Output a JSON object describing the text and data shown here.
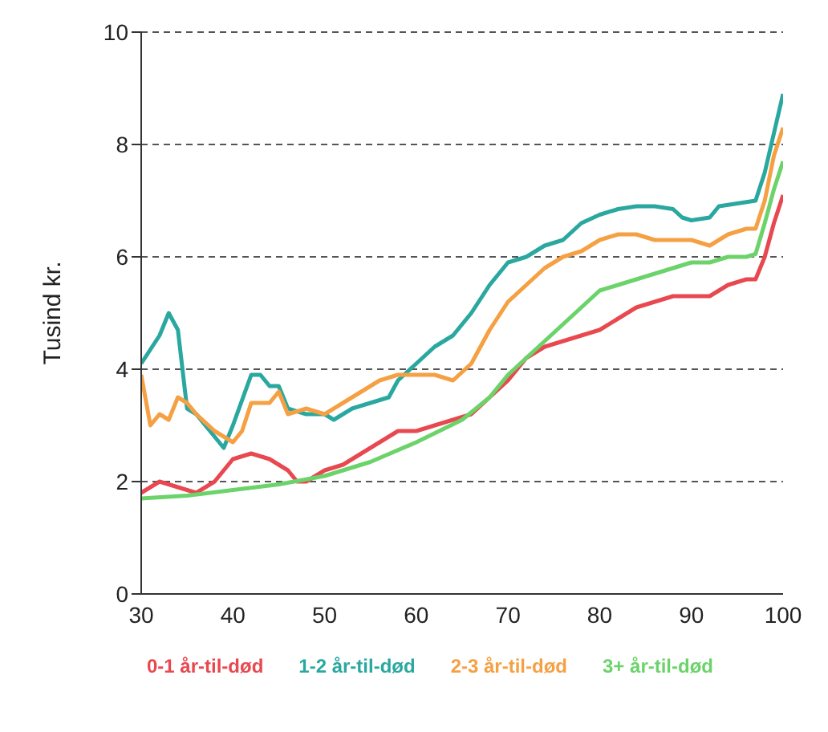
{
  "chart_data": {
    "type": "line",
    "ylabel": "Tusind kr.",
    "xlim": [
      30,
      100
    ],
    "xticks": [
      30,
      40,
      50,
      60,
      70,
      80,
      90,
      100
    ],
    "ylim": [
      0,
      10
    ],
    "yticks": [
      0,
      2,
      4,
      6,
      8,
      10
    ],
    "grid": "y",
    "legend": "bottom",
    "marker": "none",
    "line_style": "solid",
    "series": [
      {
        "name": "0-1 år-til-død",
        "color": "#e8484f",
        "x": [
          30,
          31,
          32,
          34,
          36,
          38,
          40,
          42,
          44,
          46,
          47,
          48,
          50,
          52,
          54,
          56,
          58,
          60,
          62,
          64,
          66,
          68,
          70,
          72,
          74,
          76,
          78,
          80,
          82,
          84,
          86,
          88,
          90,
          92,
          94,
          96,
          97,
          98,
          99,
          100
        ],
        "values": [
          1.8,
          1.9,
          2.0,
          1.9,
          1.8,
          2.0,
          2.4,
          2.5,
          2.4,
          2.2,
          2.0,
          2.0,
          2.2,
          2.3,
          2.5,
          2.7,
          2.9,
          2.9,
          3.0,
          3.1,
          3.2,
          3.5,
          3.8,
          4.2,
          4.4,
          4.5,
          4.6,
          4.7,
          4.9,
          5.1,
          5.2,
          5.3,
          5.3,
          5.3,
          5.5,
          5.6,
          5.6,
          6.0,
          6.6,
          7.1
        ]
      },
      {
        "name": "1-2 år-til-død",
        "color": "#2aa8a0",
        "x": [
          30,
          32,
          33,
          34,
          35,
          36,
          38,
          39,
          40,
          42,
          43,
          44,
          45,
          46,
          48,
          50,
          51,
          53,
          55,
          57,
          58,
          60,
          62,
          64,
          66,
          68,
          70,
          72,
          74,
          76,
          78,
          80,
          82,
          84,
          86,
          88,
          89,
          90,
          92,
          93,
          95,
          97,
          98,
          99,
          100
        ],
        "values": [
          4.1,
          4.6,
          5.0,
          4.7,
          3.3,
          3.2,
          2.8,
          2.6,
          3.0,
          3.9,
          3.9,
          3.7,
          3.7,
          3.3,
          3.2,
          3.2,
          3.1,
          3.3,
          3.4,
          3.5,
          3.8,
          4.1,
          4.4,
          4.6,
          5.0,
          5.5,
          5.9,
          6.0,
          6.2,
          6.3,
          6.6,
          6.75,
          6.85,
          6.9,
          6.9,
          6.85,
          6.7,
          6.65,
          6.7,
          6.9,
          6.95,
          7.0,
          7.5,
          8.2,
          8.9
        ]
      },
      {
        "name": "2-3 år-til-død",
        "color": "#f5a043",
        "x": [
          30,
          31,
          32,
          33,
          34,
          35,
          36,
          38,
          40,
          41,
          42,
          44,
          45,
          46,
          48,
          50,
          52,
          54,
          56,
          58,
          60,
          62,
          64,
          66,
          68,
          70,
          72,
          74,
          76,
          78,
          80,
          82,
          84,
          86,
          88,
          90,
          92,
          94,
          96,
          97,
          98,
          99,
          100
        ],
        "values": [
          3.9,
          3.0,
          3.2,
          3.1,
          3.5,
          3.4,
          3.2,
          2.9,
          2.7,
          2.9,
          3.4,
          3.4,
          3.6,
          3.2,
          3.3,
          3.2,
          3.4,
          3.6,
          3.8,
          3.9,
          3.9,
          3.9,
          3.8,
          4.1,
          4.7,
          5.2,
          5.5,
          5.8,
          6.0,
          6.1,
          6.3,
          6.4,
          6.4,
          6.3,
          6.3,
          6.3,
          6.2,
          6.4,
          6.5,
          6.5,
          7.0,
          7.8,
          8.3
        ]
      },
      {
        "name": "3+ år-til-død",
        "color": "#6cd36a",
        "x": [
          30,
          35,
          40,
          45,
          50,
          55,
          60,
          65,
          68,
          70,
          72,
          74,
          76,
          78,
          80,
          82,
          84,
          86,
          88,
          90,
          92,
          94,
          96,
          97,
          98,
          99,
          100
        ],
        "values": [
          1.7,
          1.75,
          1.85,
          1.95,
          2.1,
          2.35,
          2.7,
          3.1,
          3.5,
          3.9,
          4.2,
          4.5,
          4.8,
          5.1,
          5.4,
          5.5,
          5.6,
          5.7,
          5.8,
          5.9,
          5.9,
          6.0,
          6.0,
          6.05,
          6.6,
          7.2,
          7.7
        ]
      }
    ]
  }
}
